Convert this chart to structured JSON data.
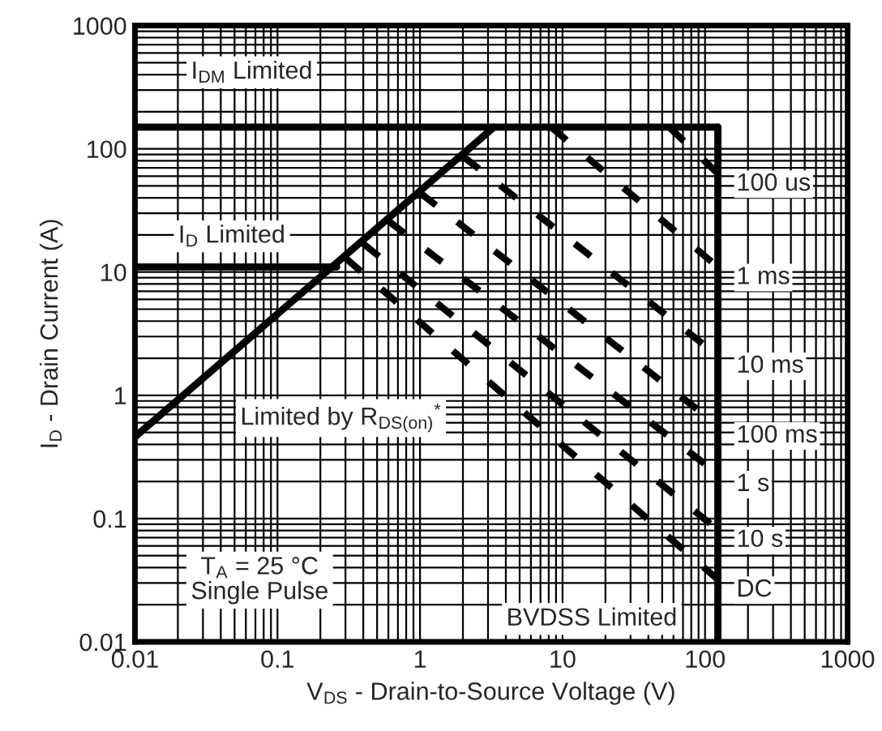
{
  "chart_data": {
    "type": "line",
    "log": "xy",
    "xlabel": "V$_{DS}$ - Drain-to-Source Voltage (V)",
    "ylabel": "I$_{D}$ - Drain Current (A)",
    "xlim": [
      0.01,
      1000
    ],
    "ylim": [
      0.01,
      1000
    ],
    "xticks": [
      0.01,
      0.1,
      1,
      10,
      100,
      1000
    ],
    "yticks": [
      0.01,
      0.1,
      1,
      10,
      100,
      1000
    ],
    "grid": true,
    "legend": false,
    "series": [
      {
        "color": "#000000",
        "line_style": "solid",
        "x": [
          0.01,
          123
        ],
        "values": [
          150,
          150
        ]
      },
      {
        "color": "#000000",
        "line_style": "solid",
        "x": [
          0.01,
          0.26
        ],
        "values": [
          11,
          11
        ]
      },
      {
        "color": "#000000",
        "line_style": "solid",
        "x": [
          0.01,
          3.3
        ],
        "values": [
          0.46,
          150
        ]
      },
      {
        "color": "#000000",
        "line_style": "solid",
        "x": [
          123,
          123
        ],
        "values": [
          0.01,
          150
        ]
      },
      {
        "name": "100 us",
        "color": "#000000",
        "line_style": "dashed",
        "x": [
          56,
          123
        ],
        "values": [
          150,
          63
        ]
      },
      {
        "name": "1 ms",
        "color": "#000000",
        "line_style": "dashed",
        "x": [
          8.3,
          123
        ],
        "values": [
          150,
          11
        ]
      },
      {
        "name": "10 ms",
        "color": "#000000",
        "line_style": "dashed",
        "x": [
          2.0,
          123
        ],
        "values": [
          87,
          2.1
        ]
      },
      {
        "name": "100 ms",
        "color": "#000000",
        "line_style": "dashed",
        "x": [
          1.0,
          123
        ],
        "values": [
          44,
          0.57
        ]
      },
      {
        "name": "1 s",
        "color": "#000000",
        "line_style": "dashed",
        "x": [
          0.6,
          123
        ],
        "values": [
          26,
          0.23
        ]
      },
      {
        "name": "10 s",
        "color": "#000000",
        "line_style": "dashed",
        "x": [
          0.4,
          123
        ],
        "values": [
          17,
          0.081
        ]
      },
      {
        "name": "DC",
        "color": "#000000",
        "line_style": "dashed",
        "x": [
          0.3,
          123
        ],
        "values": [
          13,
          0.032
        ]
      }
    ],
    "annotations": [
      "I$_{DM}$ Limited",
      "I$_{D}$ Limited",
      "Limited by R$_{DS(on)}$$^{*}$",
      "BVDSS Limited",
      "T$_{A}$ = 25 °C\nSingle Pulse"
    ]
  }
}
